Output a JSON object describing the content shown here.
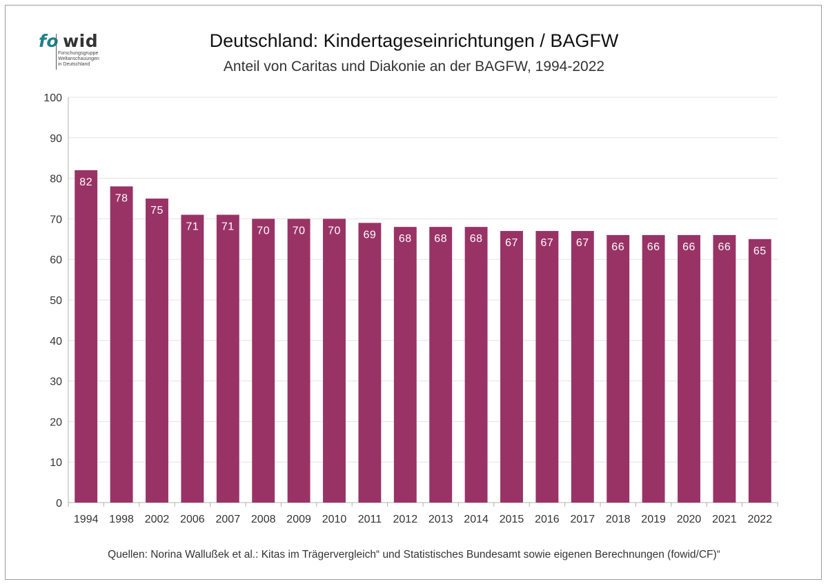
{
  "logo": {
    "word_fo": "fo",
    "word_wid": "wid",
    "sub_lines": [
      "Forschungsgruppe",
      "Weltanschauungen",
      "in Deutschland"
    ]
  },
  "header": {
    "title": "Deutschland: Kindertageseinrichtungen / BAGFW",
    "subtitle": "Anteil von Caritas und Diakonie an der BAGFW, 1994-2022"
  },
  "footer": {
    "source": "Quellen: Norina Wallußek et al.: Kitas im Trägervergleich“ und Statistisches Bundesamt sowie eigenen Berechnungen (fowid/CF)“"
  },
  "colors": {
    "bar": "#993366",
    "grid": "#e3e3e3",
    "axis": "#b0b0b0",
    "bar_label": "#ffffff"
  },
  "chart_data": {
    "type": "bar",
    "title": "Deutschland: Kindertageseinrichtungen / BAGFW",
    "subtitle": "Anteil von Caritas und Diakonie an der BAGFW, 1994-2022",
    "xlabel": "",
    "ylabel": "",
    "categories": [
      "1994",
      "1998",
      "2002",
      "2006",
      "2007",
      "2008",
      "2009",
      "2010",
      "2011",
      "2012",
      "2013",
      "2014",
      "2015",
      "2016",
      "2017",
      "2018",
      "2019",
      "2020",
      "2021",
      "2022"
    ],
    "values": [
      82,
      78,
      75,
      71,
      71,
      70,
      70,
      70,
      69,
      68,
      68,
      68,
      67,
      67,
      67,
      66,
      66,
      66,
      66,
      65
    ],
    "ylim": [
      0,
      100
    ],
    "yticks": [
      0,
      10,
      20,
      30,
      40,
      50,
      60,
      70,
      80,
      90,
      100
    ],
    "grid": true,
    "legend": "none",
    "data_labels": "inside-top"
  }
}
